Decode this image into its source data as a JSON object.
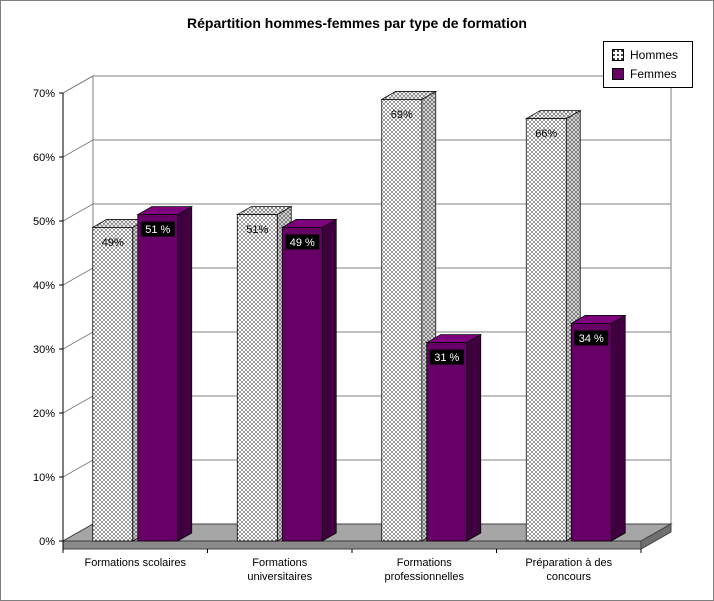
{
  "chart_data": {
    "type": "bar",
    "variant": "3d-column",
    "title": "Répartition hommes-femmes par type de formation",
    "categories": [
      "Formations scolaires",
      "Formations\nuniversitaires",
      "Formations\nprofessionnelles",
      "Préparation à des\nconcours"
    ],
    "series": [
      {
        "name": "Hommes",
        "values": [
          49,
          51,
          69,
          66
        ],
        "labels": [
          "49%",
          "51%",
          "69%",
          "66%"
        ],
        "color": "#ffffff",
        "pattern": "dots",
        "label_style": "black-on-pattern"
      },
      {
        "name": "Femmes",
        "values": [
          51,
          49,
          31,
          34
        ],
        "labels": [
          "51 %",
          "49 %",
          "31 %",
          "34 %"
        ],
        "color": "#660066",
        "pattern": "solid",
        "label_style": "white-on-black"
      }
    ],
    "xlabel": "",
    "ylabel": "",
    "ylim": [
      0,
      70
    ],
    "ytick_step": 10,
    "ytick_suffix": "%",
    "grid": true,
    "legend_position": "top-right",
    "colors": {
      "floor": "#a6a6a6",
      "floor_front": "#8a8a8a",
      "floor_side": "#707070",
      "wall": "#ffffff",
      "gridline": "#808080",
      "femmes_top": "#7d007d",
      "femmes_side": "#400040",
      "label_box": "#000000",
      "label_box_text": "#ffffff"
    }
  }
}
